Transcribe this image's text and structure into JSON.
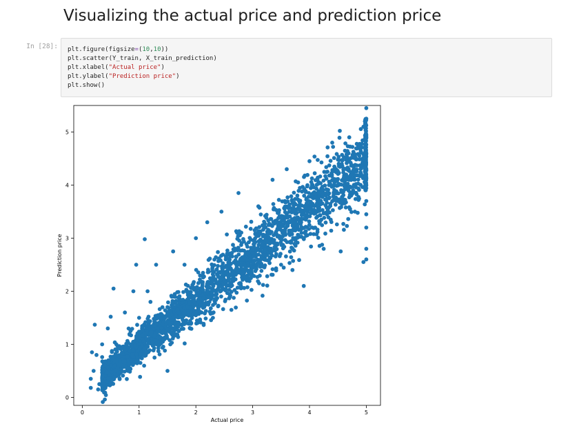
{
  "notebook": {
    "heading": "Visualizing the actual price and prediction price",
    "cell": {
      "prompt": "In [28]:",
      "code": {
        "line1": {
          "a": "plt.figure(figsize",
          "op": "=",
          "b": "(",
          "n1": "10",
          "c": ",",
          "n2": "10",
          "d": "))"
        },
        "line2": "plt.scatter(Y_train, X_train_prediction)",
        "line3": {
          "a": "plt.xlabel(",
          "s": "\"Actual price\"",
          "b": ")"
        },
        "line4": {
          "a": "plt.ylabel(",
          "s": "\"Prediction price\"",
          "b": ")"
        },
        "line5": "plt.show()"
      }
    }
  },
  "chart_data": {
    "type": "scatter",
    "xlabel": "Actual price",
    "ylabel": "Prediction price",
    "xlim": [
      -0.15,
      5.25
    ],
    "ylim": [
      -0.15,
      5.5
    ],
    "xticks": [
      0,
      1,
      2,
      3,
      4,
      5
    ],
    "yticks": [
      0,
      1,
      2,
      3,
      4,
      5
    ],
    "grid": false,
    "color": "#1f77b4",
    "series": [
      {
        "points": [
          [
            0.15,
            0.35
          ],
          [
            0.15,
            0.18
          ],
          [
            0.2,
            0.5
          ],
          [
            0.17,
            0.85
          ],
          [
            0.22,
            1.37
          ],
          [
            0.25,
            0.8
          ],
          [
            0.3,
            0.25
          ],
          [
            0.28,
            0.15
          ],
          [
            0.35,
            1.0
          ],
          [
            0.4,
            0.6
          ],
          [
            0.45,
            1.3
          ],
          [
            0.5,
            1.52
          ],
          [
            0.55,
            2.05
          ],
          [
            0.6,
            1.0
          ],
          [
            0.75,
            1.6
          ],
          [
            0.85,
            1.25
          ],
          [
            0.9,
            2.0
          ],
          [
            0.95,
            2.5
          ],
          [
            1.0,
            1.5
          ],
          [
            1.1,
            2.98
          ],
          [
            1.15,
            2.0
          ],
          [
            1.2,
            1.8
          ],
          [
            1.3,
            2.5
          ],
          [
            1.5,
            0.5
          ],
          [
            1.55,
            1.0
          ],
          [
            1.6,
            2.75
          ],
          [
            1.8,
            2.5
          ],
          [
            1.9,
            1.3
          ],
          [
            2.0,
            3.0
          ],
          [
            2.1,
            1.6
          ],
          [
            2.2,
            3.3
          ],
          [
            2.3,
            1.5
          ],
          [
            2.45,
            3.5
          ],
          [
            2.6,
            1.9
          ],
          [
            2.75,
            3.85
          ],
          [
            2.9,
            2.2
          ],
          [
            3.1,
            3.6
          ],
          [
            3.2,
            2.6
          ],
          [
            3.35,
            4.1
          ],
          [
            3.5,
            2.5
          ],
          [
            3.6,
            4.3
          ],
          [
            3.7,
            2.4
          ],
          [
            3.8,
            4.05
          ],
          [
            3.9,
            2.1
          ],
          [
            4.0,
            4.45
          ],
          [
            4.1,
            3.2
          ],
          [
            4.25,
            2.8
          ],
          [
            4.4,
            4.8
          ],
          [
            4.5,
            3.7
          ],
          [
            4.55,
            2.75
          ],
          [
            4.7,
            4.9
          ],
          [
            4.8,
            3.5
          ],
          [
            4.95,
            5.1
          ],
          [
            4.95,
            2.55
          ],
          [
            5.0,
            5.45
          ],
          [
            5.0,
            5.25
          ],
          [
            5.0,
            4.95
          ],
          [
            5.0,
            4.6
          ],
          [
            5.0,
            4.3
          ],
          [
            5.0,
            4.0
          ],
          [
            5.0,
            3.7
          ],
          [
            5.0,
            3.45
          ],
          [
            5.0,
            3.2
          ],
          [
            5.0,
            2.8
          ],
          [
            5.0,
            2.6
          ]
        ]
      }
    ]
  }
}
